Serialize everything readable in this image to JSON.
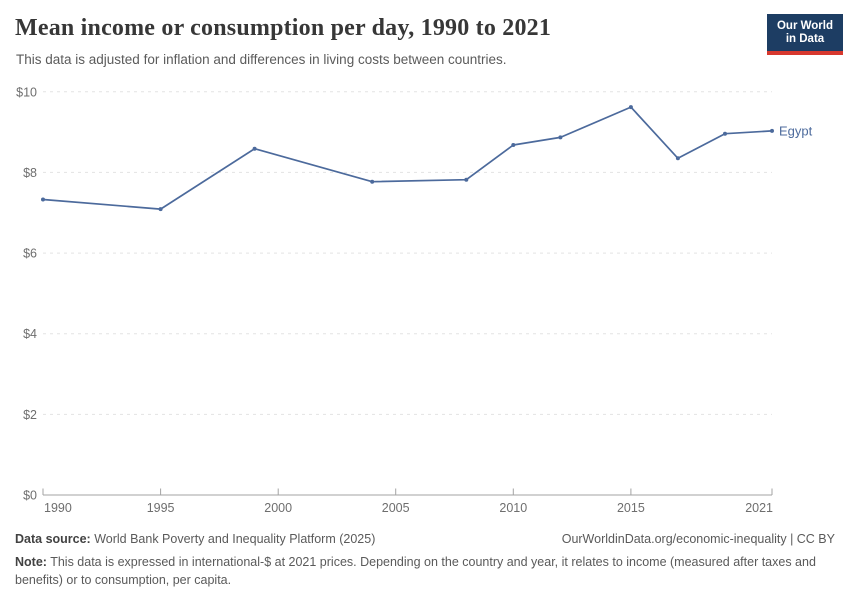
{
  "header": {
    "title": "Mean income or consumption per day, 1990 to 2021",
    "subtitle": "This data is adjusted for inflation and differences in living costs between countries.",
    "logo": {
      "line1": "Our World",
      "line2": "in Data",
      "bg_color": "#1d3d63",
      "bar_color": "#d7382e"
    }
  },
  "chart_data": {
    "type": "line",
    "title": "Mean income or consumption per day, 1990 to 2021",
    "x": [
      1990,
      1995,
      1999,
      2004,
      2008,
      2010,
      2012,
      2015,
      2017,
      2019,
      2021
    ],
    "series": [
      {
        "name": "Egypt",
        "color": "#4c6a9c",
        "values": [
          7.33,
          7.09,
          8.59,
          7.77,
          7.82,
          8.68,
          8.87,
          9.62,
          8.35,
          8.96,
          9.03
        ]
      }
    ],
    "xlabel": "",
    "ylabel": "",
    "xlim": [
      1990,
      2021
    ],
    "ylim": [
      0,
      10
    ],
    "xtick_values": [
      1990,
      1995,
      2000,
      2005,
      2010,
      2015,
      2021
    ],
    "xtick_labels": [
      "1990",
      "1995",
      "2000",
      "2005",
      "2010",
      "2015",
      "2021"
    ],
    "ytick_values": [
      0,
      2,
      4,
      6,
      8,
      10
    ],
    "ytick_labels": [
      "$0",
      "$2",
      "$4",
      "$6",
      "$8",
      "$10"
    ],
    "grid": "horizontal dashed",
    "legend_position": "end-of-line label",
    "markers": true
  },
  "footer": {
    "datasource_label": "Data source:",
    "datasource_text": " World Bank Poverty and Inequality Platform (2025)",
    "link_text": "OurWorldinData.org/economic-inequality | CC BY",
    "note_label": "Note:",
    "note_text": " This data is expressed in international-$ at 2021 prices. Depending on the country and year, it relates to income (measured after taxes and benefits) or to consumption, per capita."
  },
  "colors": {
    "grid": "#e3e3e3",
    "axis": "#a3a3a3",
    "tick_text": "#6e6e6e"
  }
}
